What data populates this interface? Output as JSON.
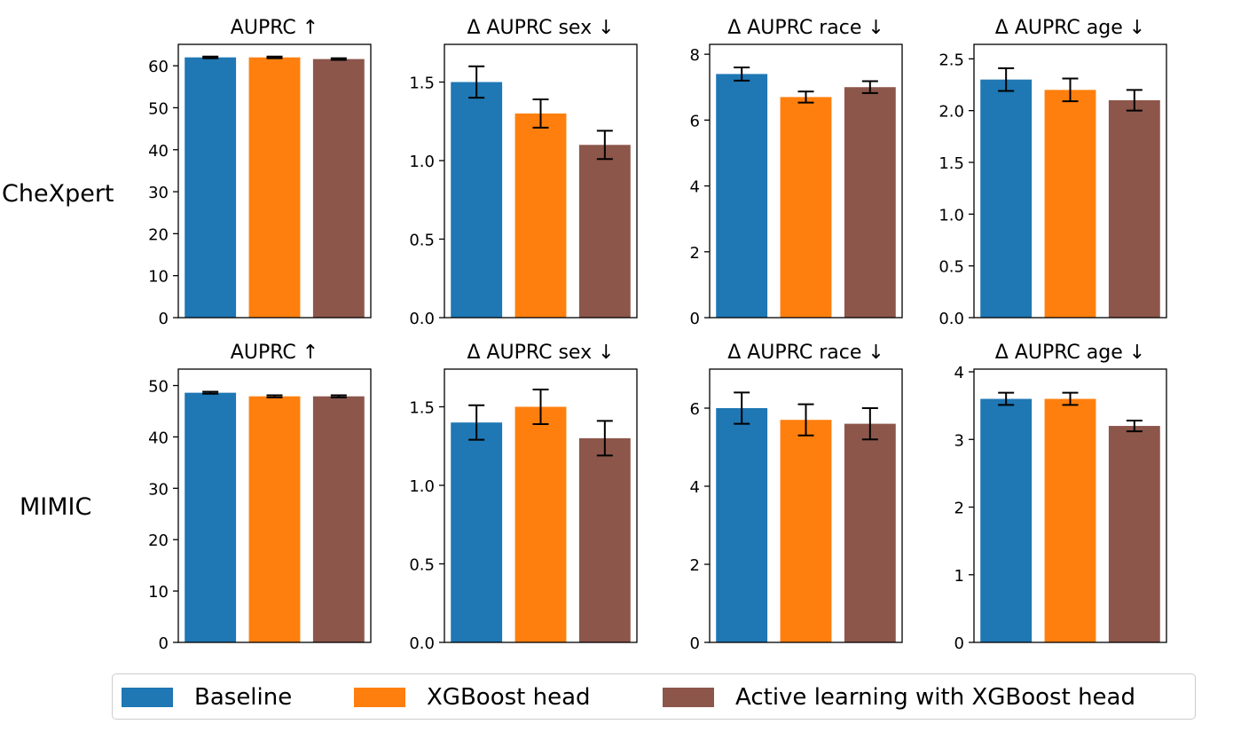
{
  "row_labels": [
    "CheXpert",
    "MIMIC"
  ],
  "legend": {
    "items": [
      {
        "label": "Baseline",
        "color": "#1f77b4"
      },
      {
        "label": "XGBoost head",
        "color": "#ff7f0e"
      },
      {
        "label": "Active learning with XGBoost head",
        "color": "#8c564b"
      }
    ]
  },
  "chart_data": [
    {
      "type": "bar",
      "dataset": "CheXpert",
      "title": "AUPRC ↑",
      "categories": [
        "Baseline",
        "XGBoost head",
        "Active learning with XGBoost head"
      ],
      "values": [
        62.0,
        62.0,
        61.6
      ],
      "errors": [
        0.2,
        0.2,
        0.2
      ],
      "ylim": [
        0,
        65.1
      ],
      "yticks": [
        0,
        10,
        20,
        30,
        40,
        50,
        60
      ],
      "ytick_labels": [
        "0",
        "10",
        "20",
        "30",
        "40",
        "50",
        "60"
      ]
    },
    {
      "type": "bar",
      "dataset": "CheXpert",
      "title": "Δ AUPRC sex ↓",
      "categories": [
        "Baseline",
        "XGBoost head",
        "Active learning with XGBoost head"
      ],
      "values": [
        1.5,
        1.3,
        1.1
      ],
      "errors": [
        0.1,
        0.09,
        0.09
      ],
      "ylim": [
        0,
        1.74
      ],
      "yticks": [
        0.0,
        0.5,
        1.0,
        1.5
      ],
      "ytick_labels": [
        "0.0",
        "0.5",
        "1.0",
        "1.5"
      ]
    },
    {
      "type": "bar",
      "dataset": "CheXpert",
      "title": "Δ AUPRC race ↓",
      "categories": [
        "Baseline",
        "XGBoost head",
        "Active learning with XGBoost head"
      ],
      "values": [
        7.4,
        6.7,
        7.0
      ],
      "errors": [
        0.2,
        0.17,
        0.18
      ],
      "ylim": [
        0,
        8.3
      ],
      "yticks": [
        0,
        2,
        4,
        6,
        8
      ],
      "ytick_labels": [
        "0",
        "2",
        "4",
        "6",
        "8"
      ]
    },
    {
      "type": "bar",
      "dataset": "CheXpert",
      "title": "Δ AUPRC age ↓",
      "categories": [
        "Baseline",
        "XGBoost head",
        "Active learning with XGBoost head"
      ],
      "values": [
        2.3,
        2.2,
        2.1
      ],
      "errors": [
        0.11,
        0.11,
        0.1
      ],
      "ylim": [
        0,
        2.64
      ],
      "yticks": [
        0.0,
        0.5,
        1.0,
        1.5,
        2.0,
        2.5
      ],
      "ytick_labels": [
        "0.0",
        "0.5",
        "1.0",
        "1.5",
        "2.0",
        "2.5"
      ]
    },
    {
      "type": "bar",
      "dataset": "MIMIC",
      "title": "AUPRC ↑",
      "categories": [
        "Baseline",
        "XGBoost head",
        "Active learning with XGBoost head"
      ],
      "values": [
        48.6,
        47.9,
        47.9
      ],
      "errors": [
        0.2,
        0.2,
        0.2
      ],
      "ylim": [
        0,
        53.2
      ],
      "yticks": [
        0,
        10,
        20,
        30,
        40,
        50
      ],
      "ytick_labels": [
        "0",
        "10",
        "20",
        "30",
        "40",
        "50"
      ]
    },
    {
      "type": "bar",
      "dataset": "MIMIC",
      "title": "Δ AUPRC sex ↓",
      "categories": [
        "Baseline",
        "XGBoost head",
        "Active learning with XGBoost head"
      ],
      "values": [
        1.4,
        1.5,
        1.3
      ],
      "errors": [
        0.11,
        0.11,
        0.11
      ],
      "ylim": [
        0,
        1.74
      ],
      "yticks": [
        0.0,
        0.5,
        1.0,
        1.5
      ],
      "ytick_labels": [
        "0.0",
        "0.5",
        "1.0",
        "1.5"
      ]
    },
    {
      "type": "bar",
      "dataset": "MIMIC",
      "title": "Δ AUPRC race ↓",
      "categories": [
        "Baseline",
        "XGBoost head",
        "Active learning with XGBoost head"
      ],
      "values": [
        6.0,
        5.7,
        5.6
      ],
      "errors": [
        0.4,
        0.4,
        0.4
      ],
      "ylim": [
        0,
        7.0
      ],
      "yticks": [
        0,
        2,
        4,
        6
      ],
      "ytick_labels": [
        "0",
        "2",
        "4",
        "6"
      ]
    },
    {
      "type": "bar",
      "dataset": "MIMIC",
      "title": "Δ AUPRC age ↓",
      "categories": [
        "Baseline",
        "XGBoost head",
        "Active learning with XGBoost head"
      ],
      "values": [
        3.6,
        3.6,
        3.2
      ],
      "errors": [
        0.09,
        0.09,
        0.08
      ],
      "ylim": [
        0,
        4.04
      ],
      "yticks": [
        0,
        1,
        2,
        3,
        4
      ],
      "ytick_labels": [
        "0",
        "1",
        "2",
        "3",
        "4"
      ]
    }
  ]
}
